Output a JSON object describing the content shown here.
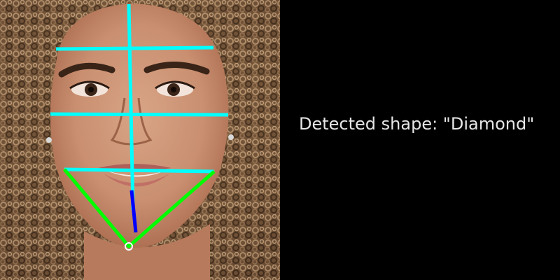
{
  "result": {
    "detected_shape_text": "Detected shape: \"Diamond\""
  },
  "colors": {
    "background": "#000000",
    "text": "#e6e6e6",
    "measurement_lines": "#00ffff",
    "jaw_lines": "#00ff00",
    "chin_segment": "#0000ff"
  },
  "photo": {
    "subject": "face-photo"
  }
}
